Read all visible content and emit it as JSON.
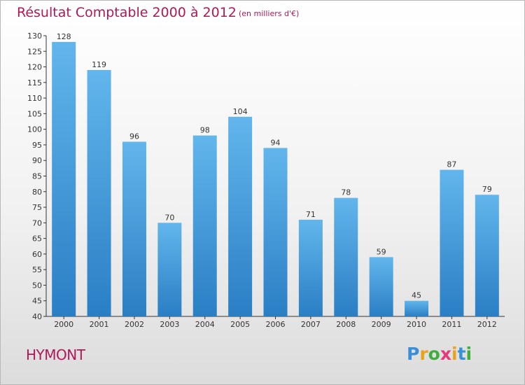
{
  "header": {
    "title": "Résultat Comptable 2000 à 2012",
    "subtitle": "(en milliers d'€)"
  },
  "commune": "HYMONT",
  "brand": {
    "letters": [
      "P",
      "r",
      "o",
      "x",
      "i",
      "t",
      "i"
    ],
    "colors": [
      "#3a8fd6",
      "#e8a21c",
      "#3fae3f",
      "#e23a7a",
      "#e8a21c",
      "#3a8fd6",
      "#3fae3f"
    ]
  },
  "colors": {
    "bar_light": "#62b6ec",
    "bar_dark": "#2a7ec4",
    "title": "#b0185a",
    "axis": "#333333"
  },
  "chart_data": {
    "type": "bar",
    "categories": [
      "2000",
      "2001",
      "2002",
      "2003",
      "2004",
      "2005",
      "2006",
      "2007",
      "2008",
      "2009",
      "2010",
      "2011",
      "2012"
    ],
    "values": [
      128,
      119,
      96,
      70,
      98,
      104,
      94,
      71,
      78,
      59,
      45,
      87,
      79
    ],
    "y_ticks": [
      40,
      45,
      50,
      55,
      60,
      65,
      70,
      75,
      80,
      85,
      90,
      95,
      100,
      105,
      110,
      115,
      120,
      125,
      130
    ],
    "ylim": [
      40,
      130
    ],
    "title": "Résultat Comptable 2000 à 2012",
    "subtitle": "(en milliers d'€)",
    "xlabel": "",
    "ylabel": "",
    "grid": false,
    "legend": "none"
  }
}
